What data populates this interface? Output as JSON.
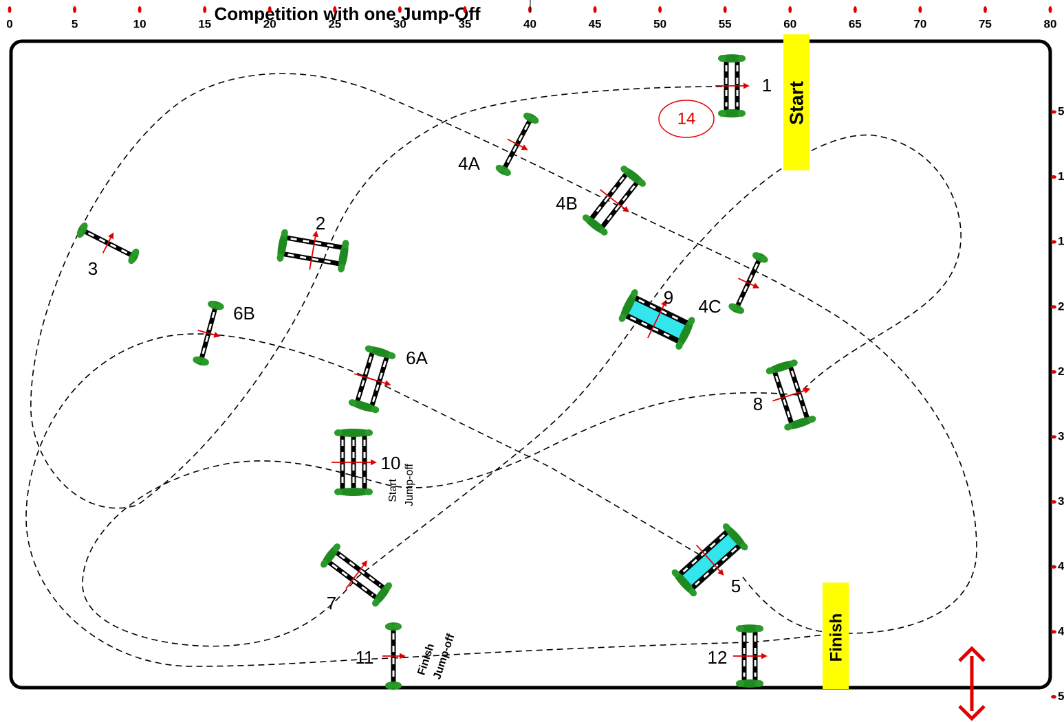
{
  "title": "Competition with one Jump-Off",
  "ruler": {
    "top": [
      0,
      5,
      10,
      15,
      20,
      25,
      30,
      35,
      40,
      45,
      50,
      55,
      60,
      65,
      70,
      75,
      80
    ],
    "right": [
      "5",
      "1",
      "1",
      "2",
      "2",
      "3",
      "3",
      "4",
      "4",
      "5"
    ]
  },
  "markers": {
    "start": "Start",
    "finish": "Finish",
    "round": "14",
    "jump_off_start": [
      "Start",
      "Jump-off"
    ],
    "jump_off_finish": [
      "Finish",
      "Jump-off"
    ]
  },
  "jumps": [
    {
      "label": "1"
    },
    {
      "label": "4A"
    },
    {
      "label": "4B"
    },
    {
      "label": "3"
    },
    {
      "label": "2"
    },
    {
      "label": "6B"
    },
    {
      "label": "6A"
    },
    {
      "label": "9"
    },
    {
      "label": "4C"
    },
    {
      "label": "8"
    },
    {
      "label": "10"
    },
    {
      "label": "7"
    },
    {
      "label": "5"
    },
    {
      "label": "11"
    },
    {
      "label": "12"
    }
  ]
}
